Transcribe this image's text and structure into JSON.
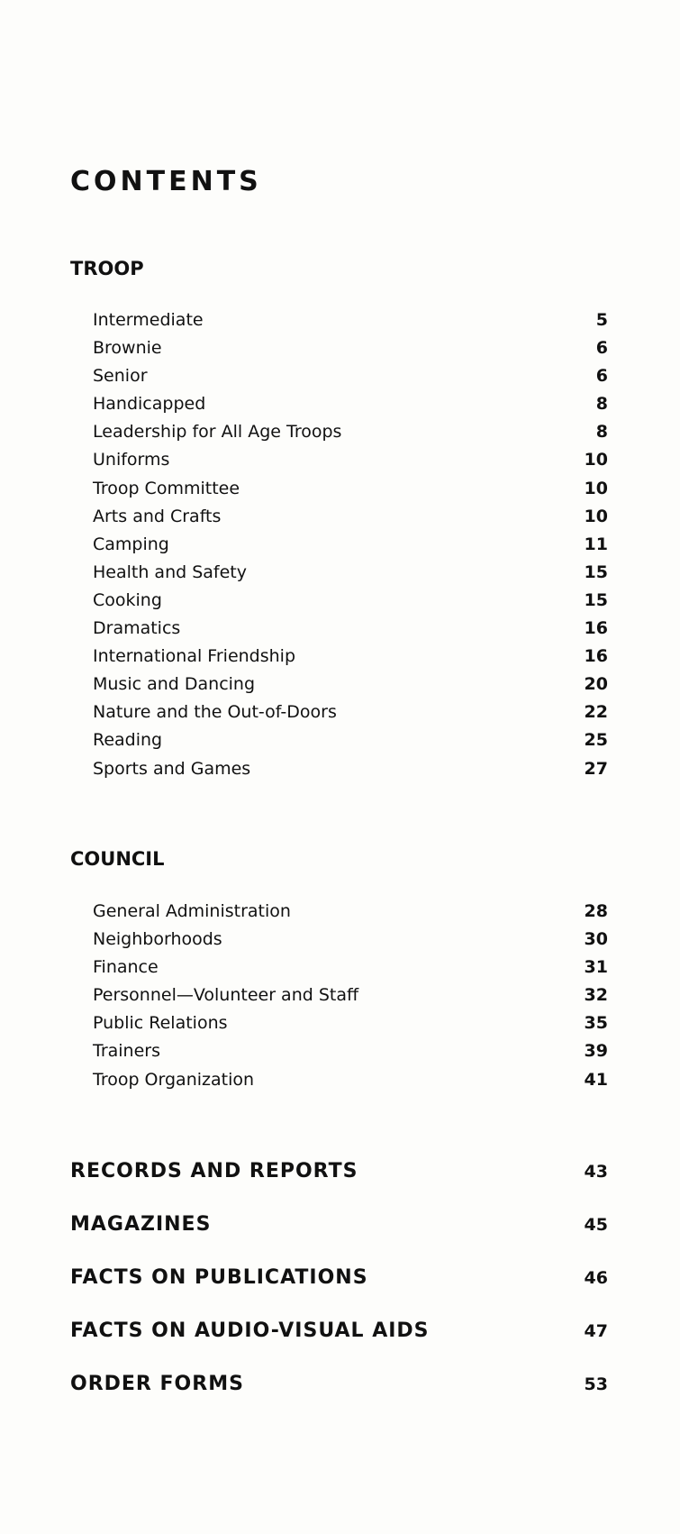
{
  "title": "CONTENTS",
  "troop": {
    "heading": "TROOP",
    "items": [
      {
        "label": "Intermediate",
        "page": "5"
      },
      {
        "label": "Brownie",
        "page": "6"
      },
      {
        "label": "Senior",
        "page": "6"
      },
      {
        "label": "Handicapped",
        "page": "8"
      },
      {
        "label": "Leadership for All Age Troops",
        "page": "8"
      },
      {
        "label": "Uniforms",
        "page": "10"
      },
      {
        "label": "Troop Committee",
        "page": "10"
      },
      {
        "label": "Arts and Crafts",
        "page": "10"
      },
      {
        "label": "Camping",
        "page": "11"
      },
      {
        "label": "Health and Safety",
        "page": "15"
      },
      {
        "label": "Cooking",
        "page": "15"
      },
      {
        "label": "Dramatics",
        "page": "16"
      },
      {
        "label": "International Friendship",
        "page": "16"
      },
      {
        "label": "Music and Dancing",
        "page": "20"
      },
      {
        "label": "Nature and the Out-of-Doors",
        "page": "22"
      },
      {
        "label": "Reading",
        "page": "25"
      },
      {
        "label": "Sports and Games",
        "page": "27"
      }
    ]
  },
  "council": {
    "heading": "COUNCIL",
    "items": [
      {
        "label": "General Administration",
        "page": "28"
      },
      {
        "label": "Neighborhoods",
        "page": "30"
      },
      {
        "label": "Finance",
        "page": "31"
      },
      {
        "label": "Personnel—Volunteer and Staff",
        "page": "32"
      },
      {
        "label": "Public Relations",
        "page": "35"
      },
      {
        "label": "Trainers",
        "page": "39"
      },
      {
        "label": "Troop Organization",
        "page": "41"
      }
    ]
  },
  "major": [
    {
      "label": "RECORDS AND REPORTS",
      "page": "43"
    },
    {
      "label": "MAGAZINES",
      "page": "45"
    },
    {
      "label": "FACTS ON PUBLICATIONS",
      "page": "46"
    },
    {
      "label": "FACTS ON AUDIO-VISUAL AIDS",
      "page": "47"
    },
    {
      "label": "ORDER FORMS",
      "page": "53"
    }
  ]
}
